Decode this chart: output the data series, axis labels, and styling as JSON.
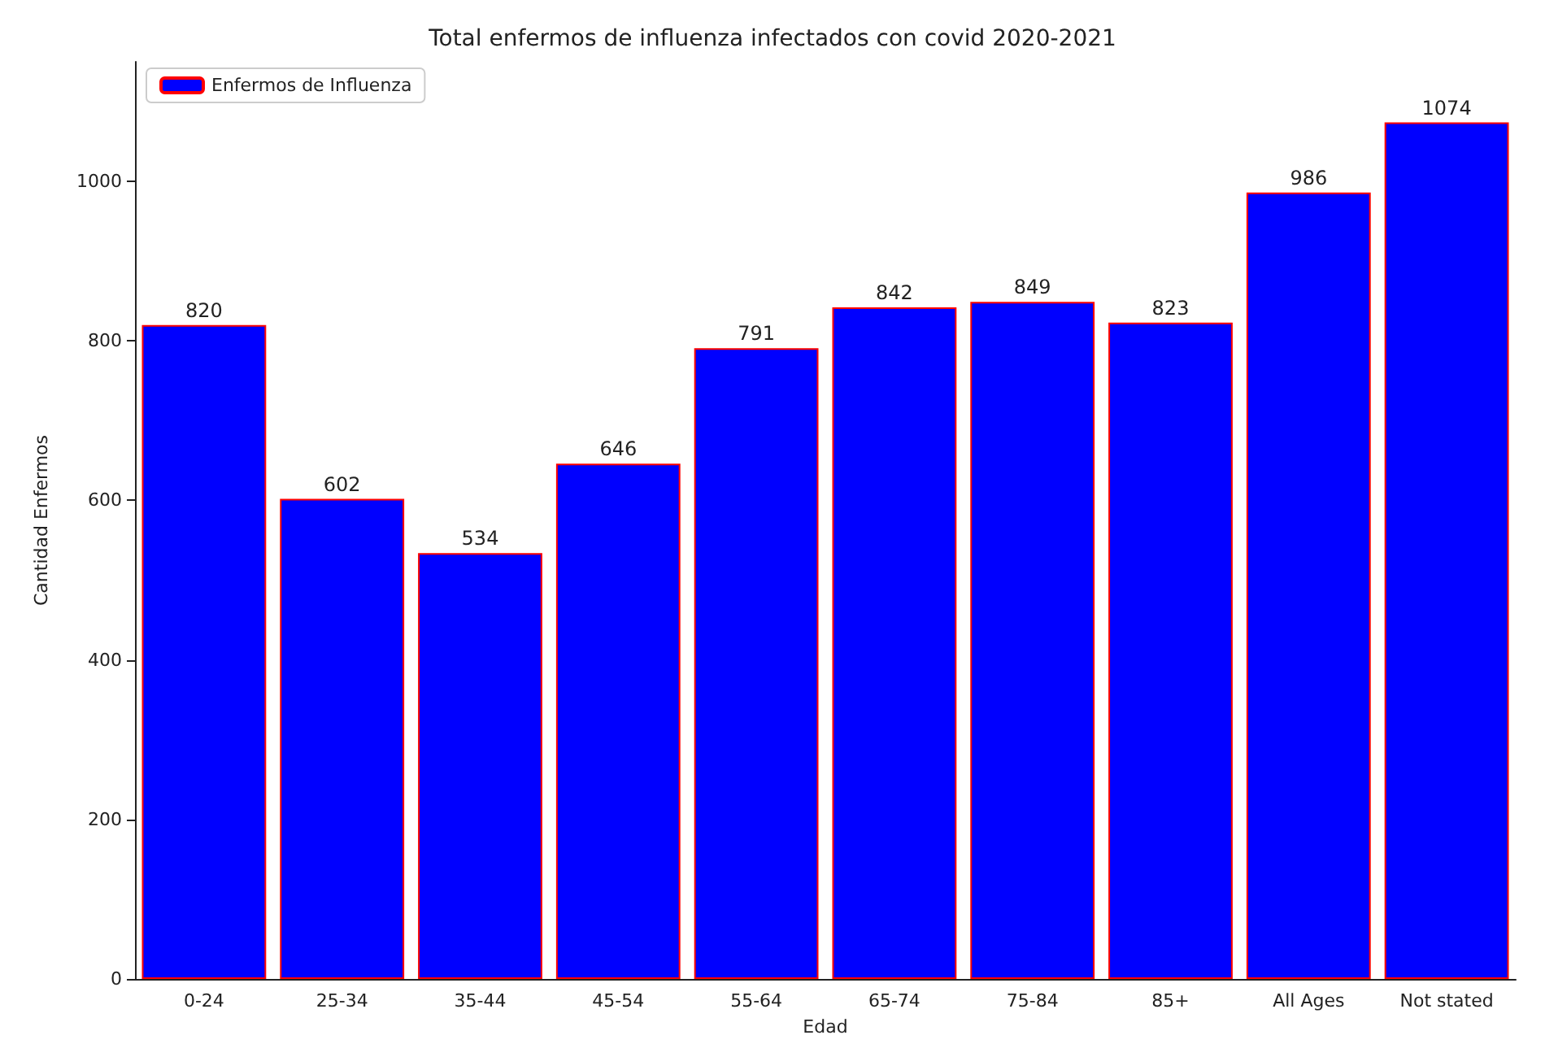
{
  "chart_data": {
    "type": "bar",
    "title": "Total enfermos de influenza infectados con covid 2020-2021",
    "xlabel": "Edad",
    "ylabel": "Cantidad Enfermos",
    "categories": [
      "0-24",
      "25-34",
      "35-44",
      "45-54",
      "55-64",
      "65-74",
      "75-84",
      "85+",
      "All Ages",
      "Not stated"
    ],
    "series": [
      {
        "name": "Enfermos de Influenza",
        "color": "#0000ff",
        "values": [
          820,
          602,
          534,
          646,
          791,
          842,
          849,
          823,
          986,
          1074
        ]
      }
    ],
    "ylim": [
      0,
      1150
    ],
    "yticks": [
      0,
      200,
      400,
      600,
      800,
      1000
    ],
    "data_labels": true,
    "legend": "top left",
    "grid": false
  }
}
